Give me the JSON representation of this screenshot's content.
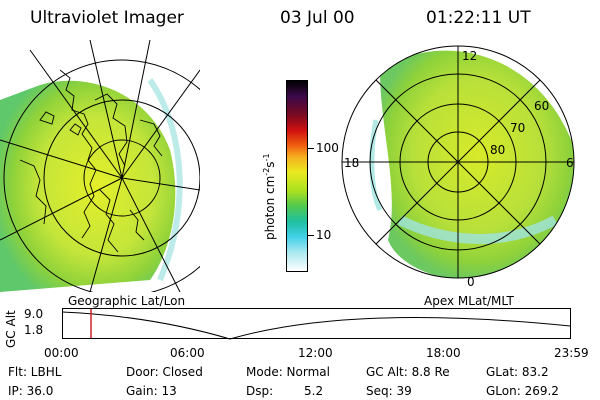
{
  "header": {
    "title": "Ultraviolet Imager",
    "date": "03 Jul 00",
    "time": "01:22:11 UT"
  },
  "left_panel": {
    "caption": "Geographic Lat/Lon"
  },
  "right_panel": {
    "caption": "Apex MLat/MLT",
    "mlt_labels": {
      "noon": "12",
      "dawn": "6",
      "midnight": "0",
      "dusk": "18"
    },
    "lat_labels": [
      "60",
      "70",
      "80"
    ]
  },
  "colorbar": {
    "unit": "photon cm",
    "unit_exp1": "-2",
    "unit_mid": "s",
    "unit_exp2": "-1",
    "ticks": [
      "100",
      "10"
    ]
  },
  "altitude_plot": {
    "ylabel": "GC Alt",
    "yticks": [
      "9.0",
      "1.8"
    ],
    "xticks": [
      "00:00",
      "06:00",
      "12:00",
      "18:00",
      "23:59"
    ],
    "marker_time": "01:22"
  },
  "footer": {
    "flt": "Flt: LBHL",
    "ip": "IP: 36.0",
    "door": "Door: Closed",
    "gain": "Gain: 13",
    "mode": "Mode: Normal",
    "dsp_label": "Dsp:",
    "dsp_value": "5.2",
    "gc_alt": "GC Alt: 8.8 Re",
    "seq": "Seq: 39",
    "glat": "GLat: 83.2",
    "glon": "GLon: 269.2"
  },
  "colors": {
    "marker": "#d0202a",
    "aurora_green": "#8fd23a",
    "aurora_yellow": "#e2ee2a",
    "aurora_cyan": "#9fe3e0"
  }
}
